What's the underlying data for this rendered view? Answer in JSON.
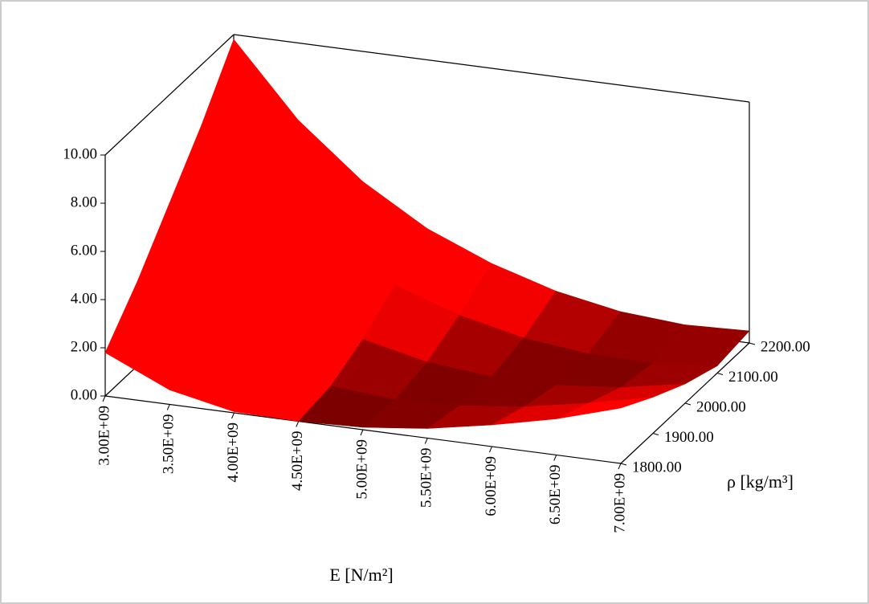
{
  "chart_data": {
    "type": "surface",
    "x_label": "E [N/m²]",
    "y_label": "ρ [kg/m³]",
    "color": "#ff0000",
    "xticks": [
      {
        "value": 3000000000,
        "label": "3.00E+09"
      },
      {
        "value": 3500000000,
        "label": "3.50E+09"
      },
      {
        "value": 4000000000,
        "label": "4.00E+09"
      },
      {
        "value": 4500000000,
        "label": "4.50E+09"
      },
      {
        "value": 5000000000,
        "label": "5.00E+09"
      },
      {
        "value": 5500000000,
        "label": "5.50E+09"
      },
      {
        "value": 6000000000,
        "label": "6.00E+09"
      },
      {
        "value": 6500000000,
        "label": "6.50E+09"
      },
      {
        "value": 7000000000,
        "label": "7.00E+09"
      }
    ],
    "yticks": [
      {
        "value": 1800,
        "label": "1800.00"
      },
      {
        "value": 1900,
        "label": "1900.00"
      },
      {
        "value": 2000,
        "label": "2000.00"
      },
      {
        "value": 2100,
        "label": "2100.00"
      },
      {
        "value": 2200,
        "label": "2200.00"
      }
    ],
    "zlim": [
      0,
      10
    ],
    "zticks": [
      {
        "value": 0,
        "label": "0.00"
      },
      {
        "value": 2,
        "label": "2.00"
      },
      {
        "value": 4,
        "label": "4.00"
      },
      {
        "value": 6,
        "label": "6.00"
      },
      {
        "value": 8,
        "label": "8.00"
      },
      {
        "value": 10,
        "label": "10.00"
      }
    ],
    "values": [
      [
        1.8,
        0.6,
        0.05,
        0.0,
        0.1,
        0.4,
        0.9,
        1.5,
        2.3
      ],
      [
        3.5,
        1.8,
        0.8,
        0.2,
        0.0,
        0.1,
        0.4,
        0.9,
        1.5
      ],
      [
        5.5,
        3.4,
        1.9,
        0.9,
        0.3,
        0.05,
        0.05,
        0.3,
        0.8
      ],
      [
        7.5,
        5.0,
        3.2,
        1.9,
        1.0,
        0.4,
        0.1,
        0.05,
        0.3
      ],
      [
        9.8,
        6.8,
        4.6,
        3.0,
        1.9,
        1.1,
        0.6,
        0.4,
        0.5
      ]
    ]
  }
}
